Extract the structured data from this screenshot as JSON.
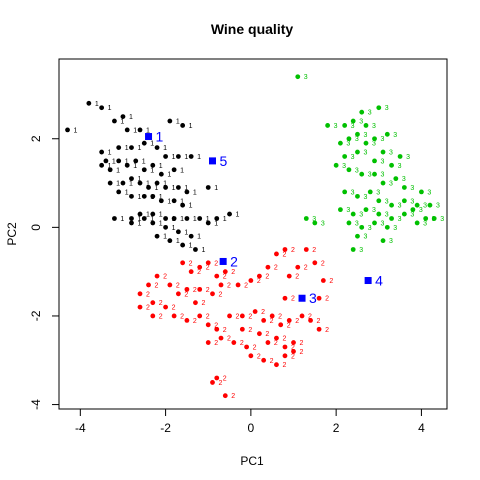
{
  "chart_data": {
    "type": "scatter",
    "title": "Wine quality",
    "xlabel": "PC1",
    "ylabel": "PC2",
    "xlim": [
      -4.5,
      4.6
    ],
    "ylim": [
      -4.1,
      3.8
    ],
    "xticks": [
      "-4",
      "-2",
      "0",
      "2",
      "4"
    ],
    "xtick_values": [
      -4,
      -2,
      0,
      2,
      4
    ],
    "yticks": [
      "-4",
      "-2",
      "0",
      "2"
    ],
    "ytick_values": [
      -4,
      -2,
      0,
      2
    ],
    "grid": false,
    "series": [
      {
        "label": "1",
        "color": "#000000",
        "points": [
          [
            -4.3,
            2.2
          ],
          [
            -3.8,
            2.8
          ],
          [
            -3.5,
            2.7
          ],
          [
            -3.2,
            2.4
          ],
          [
            -3.0,
            2.5
          ],
          [
            -2.9,
            2.2
          ],
          [
            -2.6,
            2.2
          ],
          [
            -1.9,
            2.4
          ],
          [
            -1.6,
            2.3
          ],
          [
            -3.5,
            1.7
          ],
          [
            -3.4,
            1.5
          ],
          [
            -3.1,
            1.8
          ],
          [
            -2.8,
            1.8
          ],
          [
            -2.5,
            1.9
          ],
          [
            -2.2,
            1.8
          ],
          [
            -2.0,
            1.6
          ],
          [
            -1.7,
            1.6
          ],
          [
            -1.4,
            1.6
          ],
          [
            -3.5,
            1.4
          ],
          [
            -3.3,
            1.3
          ],
          [
            -3.1,
            1.5
          ],
          [
            -2.9,
            1.4
          ],
          [
            -2.7,
            1.5
          ],
          [
            -2.5,
            1.3
          ],
          [
            -2.3,
            1.4
          ],
          [
            -2.1,
            1.2
          ],
          [
            -1.8,
            1.3
          ],
          [
            -3.3,
            1.0
          ],
          [
            -3.0,
            1.0
          ],
          [
            -2.8,
            1.1
          ],
          [
            -2.6,
            1.0
          ],
          [
            -2.4,
            0.9
          ],
          [
            -2.2,
            1.0
          ],
          [
            -2.0,
            0.9
          ],
          [
            -1.7,
            0.9
          ],
          [
            -1.5,
            0.8
          ],
          [
            -3.1,
            0.8
          ],
          [
            -2.8,
            0.7
          ],
          [
            -2.5,
            0.7
          ],
          [
            -2.3,
            0.7
          ],
          [
            -2.1,
            0.6
          ],
          [
            -1.8,
            0.6
          ],
          [
            -1.6,
            0.5
          ],
          [
            -1.0,
            0.9
          ],
          [
            -3.2,
            0.2
          ],
          [
            -2.8,
            0.2
          ],
          [
            -2.6,
            0.3
          ],
          [
            -2.3,
            0.3
          ],
          [
            -2.0,
            0.2
          ],
          [
            -1.8,
            0.2
          ],
          [
            -1.5,
            0.2
          ],
          [
            -1.2,
            0.2
          ],
          [
            -0.8,
            0.2
          ],
          [
            -0.5,
            0.3
          ],
          [
            -2.5,
            0.2
          ],
          [
            -2.3,
            0.1
          ],
          [
            -2.0,
            0.0
          ],
          [
            -1.7,
            -0.1
          ],
          [
            -1.4,
            -0.2
          ],
          [
            -2.2,
            -0.2
          ],
          [
            -1.9,
            -0.3
          ],
          [
            -1.6,
            -0.4
          ],
          [
            -1.3,
            -0.5
          ],
          [
            -2.8,
            0.1
          ],
          [
            -1.0,
            0.1
          ]
        ]
      },
      {
        "label": "2",
        "color": "#ff0000",
        "points": [
          [
            0.6,
            -0.6
          ],
          [
            0.8,
            -0.5
          ],
          [
            0.4,
            -0.9
          ],
          [
            0.9,
            -1.1
          ],
          [
            1.1,
            -0.9
          ],
          [
            1.3,
            -0.5
          ],
          [
            1.5,
            -0.8
          ],
          [
            1.7,
            -1.2
          ],
          [
            1.6,
            -1.6
          ],
          [
            -1.6,
            -0.8
          ],
          [
            -1.4,
            -1.0
          ],
          [
            -1.2,
            -0.9
          ],
          [
            -1.0,
            -0.8
          ],
          [
            -0.8,
            -1.1
          ],
          [
            -0.6,
            -1.0
          ],
          [
            -0.3,
            -1.3
          ],
          [
            0.0,
            -1.2
          ],
          [
            0.2,
            -1.1
          ],
          [
            -2.6,
            -1.5
          ],
          [
            -2.4,
            -1.3
          ],
          [
            -2.2,
            -1.1
          ],
          [
            -1.9,
            -1.3
          ],
          [
            -1.7,
            -1.5
          ],
          [
            -1.5,
            -1.4
          ],
          [
            -1.2,
            -1.4
          ],
          [
            -0.9,
            -1.5
          ],
          [
            -0.7,
            -1.3
          ],
          [
            -2.3,
            -1.7
          ],
          [
            -2.0,
            -1.8
          ],
          [
            -1.8,
            -2.0
          ],
          [
            -1.5,
            -2.1
          ],
          [
            -1.2,
            -2.0
          ],
          [
            -1.0,
            -2.2
          ],
          [
            -0.8,
            -2.3
          ],
          [
            -0.5,
            -2.0
          ],
          [
            -0.2,
            -2.0
          ],
          [
            0.1,
            -1.9
          ],
          [
            0.3,
            -2.1
          ],
          [
            0.5,
            -2.0
          ],
          [
            0.7,
            -2.2
          ],
          [
            0.9,
            -2.1
          ],
          [
            1.2,
            -2.0
          ],
          [
            1.4,
            -2.1
          ],
          [
            1.6,
            -2.3
          ],
          [
            0.8,
            -1.6
          ],
          [
            -1.0,
            -2.6
          ],
          [
            -0.7,
            -2.5
          ],
          [
            -0.4,
            -2.6
          ],
          [
            -0.1,
            -2.7
          ],
          [
            0.2,
            -2.4
          ],
          [
            0.4,
            -2.6
          ],
          [
            0.6,
            -2.5
          ],
          [
            0.8,
            -2.7
          ],
          [
            1.0,
            -2.8
          ],
          [
            0.0,
            -2.9
          ],
          [
            0.3,
            -3.0
          ],
          [
            0.6,
            -3.1
          ],
          [
            0.8,
            -2.9
          ],
          [
            1.0,
            -2.6
          ],
          [
            -2.6,
            -1.8
          ],
          [
            -2.3,
            -2.0
          ],
          [
            -0.8,
            -3.4
          ],
          [
            -0.6,
            -3.8
          ],
          [
            -0.9,
            -3.5
          ],
          [
            -0.2,
            -2.3
          ],
          [
            -1.3,
            -1.7
          ]
        ]
      },
      {
        "label": "3",
        "color": "#00c000",
        "points": [
          [
            1.1,
            3.4
          ],
          [
            3.0,
            2.7
          ],
          [
            2.6,
            2.6
          ],
          [
            2.4,
            2.4
          ],
          [
            2.2,
            2.3
          ],
          [
            2.7,
            2.3
          ],
          [
            3.2,
            2.1
          ],
          [
            1.8,
            2.3
          ],
          [
            2.9,
            2.0
          ],
          [
            2.5,
            2.1
          ],
          [
            2.3,
            2.0
          ],
          [
            2.1,
            1.9
          ],
          [
            2.7,
            1.9
          ],
          [
            3.1,
            1.7
          ],
          [
            2.2,
            1.6
          ],
          [
            2.5,
            1.7
          ],
          [
            2.9,
            1.5
          ],
          [
            3.3,
            1.4
          ],
          [
            3.5,
            1.6
          ],
          [
            2.0,
            1.4
          ],
          [
            2.3,
            1.3
          ],
          [
            2.6,
            1.2
          ],
          [
            2.9,
            1.2
          ],
          [
            3.1,
            1.0
          ],
          [
            3.4,
            1.1
          ],
          [
            3.6,
            0.9
          ],
          [
            4.0,
            0.8
          ],
          [
            2.2,
            0.8
          ],
          [
            2.5,
            0.7
          ],
          [
            2.8,
            0.8
          ],
          [
            3.0,
            0.6
          ],
          [
            3.3,
            0.5
          ],
          [
            3.6,
            0.6
          ],
          [
            3.9,
            0.5
          ],
          [
            4.2,
            0.5
          ],
          [
            2.1,
            0.4
          ],
          [
            2.4,
            0.3
          ],
          [
            2.7,
            0.4
          ],
          [
            3.0,
            0.3
          ],
          [
            3.3,
            0.2
          ],
          [
            3.6,
            0.3
          ],
          [
            3.9,
            0.1
          ],
          [
            4.1,
            0.2
          ],
          [
            2.3,
            0.1
          ],
          [
            2.6,
            0.0
          ],
          [
            2.9,
            0.1
          ],
          [
            3.2,
            0.0
          ],
          [
            1.5,
            0.1
          ],
          [
            1.3,
            0.2
          ],
          [
            3.8,
            0.4
          ],
          [
            2.4,
            -0.5
          ],
          [
            3.1,
            -0.3
          ],
          [
            2.5,
            -0.2
          ],
          [
            4.3,
            0.2
          ]
        ]
      }
    ],
    "centers": [
      {
        "label": "1",
        "x": -2.4,
        "y": 2.05
      },
      {
        "label": "2",
        "x": -0.65,
        "y": -0.77
      },
      {
        "label": "3",
        "x": 1.2,
        "y": -1.6
      },
      {
        "label": "4",
        "x": 2.75,
        "y": -1.2
      },
      {
        "label": "5",
        "x": -0.9,
        "y": 1.5
      }
    ],
    "center_color": "#0000ff"
  }
}
